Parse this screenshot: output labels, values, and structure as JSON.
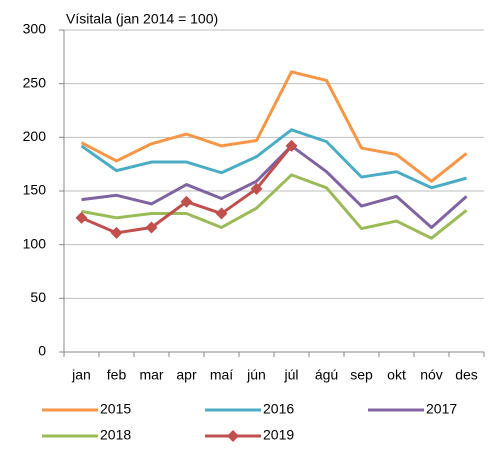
{
  "chart_data": {
    "type": "line",
    "title": "Vísitala (jan 2014 = 100)",
    "categories": [
      "jan",
      "feb",
      "mar",
      "apr",
      "maí",
      "jún",
      "júl",
      "ágú",
      "sep",
      "okt",
      "nóv",
      "des"
    ],
    "series": [
      {
        "name": "2015",
        "color": "#f79646",
        "values": [
          195,
          178,
          194,
          203,
          192,
          197,
          261,
          253,
          190,
          184,
          159,
          185
        ]
      },
      {
        "name": "2016",
        "color": "#4bacc6",
        "values": [
          192,
          169,
          177,
          177,
          167,
          182,
          207,
          196,
          163,
          168,
          153,
          162
        ]
      },
      {
        "name": "2017",
        "color": "#8064a2",
        "values": [
          142,
          146,
          138,
          156,
          143,
          159,
          192,
          168,
          136,
          145,
          116,
          145
        ]
      },
      {
        "name": "2018",
        "color": "#9bbb59",
        "values": [
          131,
          125,
          129,
          129,
          116,
          134,
          165,
          153,
          115,
          122,
          106,
          132
        ]
      },
      {
        "name": "2019",
        "color": "#c0504d",
        "marker": "diamond",
        "values": [
          125,
          111,
          116,
          140,
          129,
          152,
          192,
          null,
          null,
          null,
          null,
          null
        ]
      }
    ],
    "ylim": [
      0,
      300
    ],
    "yticks": [
      0,
      50,
      100,
      150,
      200,
      250,
      300
    ],
    "grid": true
  }
}
